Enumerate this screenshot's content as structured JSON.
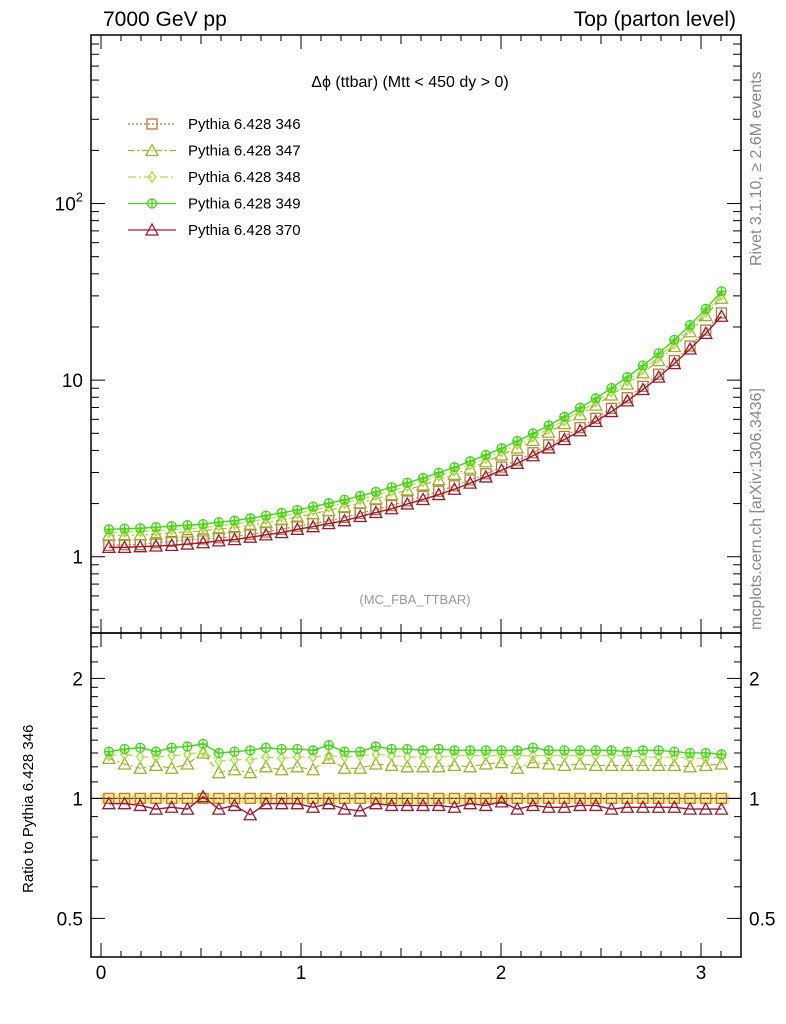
{
  "header": {
    "left": "7000 GeV pp",
    "right": "Top (parton level)"
  },
  "side_labels": {
    "rivet": "Rivet 3.1.10, ≥ 2.6M events",
    "mcplots": "mcplots.cern.ch [arXiv:1306.3436]"
  },
  "chart_data": [
    {
      "type": "line",
      "panel": "main",
      "title": "Δϕ (ttbar) (Mtt < 450 dy > 0)",
      "watermark": "(MC_FBA_TTBAR)",
      "yscale": "log",
      "xlim": [
        -0.05,
        3.2
      ],
      "ylim": [
        0.37,
        900
      ],
      "yticks": [
        {
          "value": 1,
          "label": "1"
        },
        {
          "value": 10,
          "label": "10"
        },
        {
          "value": 100,
          "label": "10^2"
        }
      ],
      "xticks": [
        0,
        1,
        2,
        3
      ],
      "legend_position": "top-left",
      "x": [
        0.0393,
        0.1178,
        0.1963,
        0.2749,
        0.3534,
        0.432,
        0.5105,
        0.589,
        0.6676,
        0.7461,
        0.8247,
        0.9032,
        0.9817,
        1.0603,
        1.1388,
        1.2174,
        1.2959,
        1.3744,
        1.453,
        1.5315,
        1.6101,
        1.6886,
        1.7671,
        1.8457,
        1.9242,
        2.0028,
        2.0813,
        2.1598,
        2.2384,
        2.3169,
        2.3955,
        2.474,
        2.5525,
        2.6311,
        2.7096,
        2.7882,
        2.8667,
        2.9452,
        3.0238,
        3.1023
      ],
      "series": [
        {
          "name": "Pythia 6.428 346",
          "color": "#b97a38",
          "marker": "square",
          "dash": "2,2",
          "values": [
            1.16,
            1.17,
            1.17,
            1.2,
            1.22,
            1.25,
            1.26,
            1.28,
            1.3,
            1.34,
            1.38,
            1.43,
            1.49,
            1.54,
            1.6,
            1.67,
            1.76,
            1.85,
            1.95,
            2.07,
            2.2,
            2.35,
            2.52,
            2.72,
            2.95,
            3.22,
            3.52,
            3.88,
            4.3,
            4.8,
            5.38,
            6.08,
            6.92,
            7.95,
            9.22,
            10.8,
            12.9,
            15.6,
            19.2,
            24.0
          ]
        },
        {
          "name": "Pythia 6.428 347",
          "color": "#9ab524",
          "marker": "triangle",
          "dash": "6,3,2,3",
          "values": [
            1.33,
            1.32,
            1.33,
            1.34,
            1.37,
            1.38,
            1.4,
            1.44,
            1.46,
            1.51,
            1.56,
            1.62,
            1.68,
            1.75,
            1.83,
            1.92,
            2.02,
            2.13,
            2.25,
            2.39,
            2.55,
            2.73,
            2.93,
            3.17,
            3.45,
            3.77,
            4.13,
            4.56,
            5.07,
            5.67,
            6.37,
            7.22,
            8.24,
            9.49,
            11.0,
            12.9,
            15.5,
            18.8,
            23.2,
            29.1
          ]
        },
        {
          "name": "Pythia 6.428 348",
          "color": "#a7e43a",
          "marker": "diamond",
          "dash": "8,3,2,3",
          "values": [
            1.37,
            1.38,
            1.39,
            1.4,
            1.43,
            1.44,
            1.46,
            1.5,
            1.53,
            1.58,
            1.63,
            1.69,
            1.76,
            1.83,
            1.92,
            2.01,
            2.11,
            2.23,
            2.36,
            2.51,
            2.67,
            2.86,
            3.07,
            3.32,
            3.61,
            3.94,
            4.32,
            4.77,
            5.3,
            5.92,
            6.66,
            7.54,
            8.61,
            9.91,
            11.5,
            13.5,
            16.2,
            19.6,
            24.2,
            30.4
          ]
        },
        {
          "name": "Pythia 6.428 349",
          "color": "#44d61c",
          "marker": "plus",
          "dash": "",
          "values": [
            1.43,
            1.44,
            1.45,
            1.47,
            1.49,
            1.51,
            1.53,
            1.57,
            1.6,
            1.65,
            1.71,
            1.77,
            1.84,
            1.92,
            2.01,
            2.1,
            2.21,
            2.33,
            2.47,
            2.62,
            2.79,
            2.99,
            3.21,
            3.47,
            3.77,
            4.12,
            4.52,
            4.99,
            5.54,
            6.2,
            6.97,
            7.89,
            9.01,
            10.4,
            12.1,
            14.2,
            16.9,
            20.5,
            25.3,
            31.8
          ]
        },
        {
          "name": "Pythia 6.428 370",
          "color": "#a01830",
          "marker": "triangle",
          "dash": "",
          "values": [
            1.13,
            1.13,
            1.14,
            1.15,
            1.16,
            1.18,
            1.2,
            1.23,
            1.25,
            1.29,
            1.33,
            1.37,
            1.43,
            1.48,
            1.54,
            1.6,
            1.69,
            1.78,
            1.87,
            1.99,
            2.11,
            2.25,
            2.41,
            2.61,
            2.83,
            3.09,
            3.38,
            3.73,
            4.13,
            4.61,
            5.17,
            5.84,
            6.64,
            7.63,
            8.85,
            10.4,
            12.4,
            15.0,
            18.4,
            23.0
          ]
        }
      ]
    },
    {
      "type": "line",
      "panel": "ratio",
      "ylabel": "Ratio to Pythia 6.428 346",
      "yscale": "log",
      "xlim": [
        -0.05,
        3.2
      ],
      "ylim": [
        0.4,
        2.6
      ],
      "yticks": [
        {
          "value": 0.5,
          "label": "0.5"
        },
        {
          "value": 1,
          "label": "1"
        },
        {
          "value": 2,
          "label": "2"
        }
      ],
      "xticks": [
        0,
        1,
        2,
        3
      ],
      "band": {
        "low": 0.97,
        "high": 1.03,
        "color": "#f7e98a"
      },
      "x": [
        0.0393,
        0.1178,
        0.1963,
        0.2749,
        0.3534,
        0.432,
        0.5105,
        0.589,
        0.6676,
        0.7461,
        0.8247,
        0.9032,
        0.9817,
        1.0603,
        1.1388,
        1.2174,
        1.2959,
        1.3744,
        1.453,
        1.5315,
        1.6101,
        1.6886,
        1.7671,
        1.8457,
        1.9242,
        2.0028,
        2.0813,
        2.1598,
        2.2384,
        2.3169,
        2.3955,
        2.474,
        2.5525,
        2.6311,
        2.7096,
        2.7882,
        2.8667,
        2.9452,
        3.0238,
        3.1023
      ],
      "series": [
        {
          "name": "Pythia 6.428 346",
          "color": "#b97a38",
          "marker": "square",
          "dash": "2,2",
          "values": [
            1,
            1,
            1,
            1,
            1,
            1,
            1,
            1,
            1,
            1,
            1,
            1,
            1,
            1,
            1,
            1,
            1,
            1,
            1,
            1,
            1,
            1,
            1,
            1,
            1,
            1,
            1,
            1,
            1,
            1,
            1,
            1,
            1,
            1,
            1,
            1,
            1,
            1,
            1,
            1
          ]
        },
        {
          "name": "Pythia 6.428 347",
          "color": "#9ab524",
          "marker": "triangle",
          "dash": "6,3,2,3",
          "values": [
            1.26,
            1.22,
            1.19,
            1.21,
            1.19,
            1.22,
            1.3,
            1.16,
            1.18,
            1.16,
            1.2,
            1.18,
            1.2,
            1.18,
            1.26,
            1.19,
            1.19,
            1.22,
            1.21,
            1.2,
            1.2,
            1.2,
            1.21,
            1.2,
            1.22,
            1.23,
            1.19,
            1.23,
            1.22,
            1.21,
            1.22,
            1.21,
            1.21,
            1.21,
            1.21,
            1.21,
            1.21,
            1.2,
            1.21,
            1.22
          ]
        },
        {
          "name": "Pythia 6.428 348",
          "color": "#a7e43a",
          "marker": "diamond",
          "dash": "8,3,2,3",
          "values": [
            1.28,
            1.29,
            1.27,
            1.27,
            1.28,
            1.29,
            1.31,
            1.24,
            1.25,
            1.25,
            1.27,
            1.26,
            1.27,
            1.27,
            1.28,
            1.27,
            1.28,
            1.29,
            1.28,
            1.27,
            1.27,
            1.27,
            1.28,
            1.28,
            1.28,
            1.28,
            1.28,
            1.28,
            1.28,
            1.28,
            1.28,
            1.28,
            1.28,
            1.28,
            1.27,
            1.27,
            1.27,
            1.26,
            1.26,
            1.27
          ]
        },
        {
          "name": "Pythia 6.428 349",
          "color": "#44d61c",
          "marker": "plus",
          "dash": "",
          "values": [
            1.31,
            1.33,
            1.34,
            1.31,
            1.34,
            1.35,
            1.37,
            1.3,
            1.31,
            1.32,
            1.34,
            1.33,
            1.33,
            1.32,
            1.36,
            1.31,
            1.31,
            1.35,
            1.33,
            1.33,
            1.32,
            1.33,
            1.32,
            1.32,
            1.32,
            1.32,
            1.32,
            1.34,
            1.32,
            1.32,
            1.32,
            1.32,
            1.32,
            1.31,
            1.32,
            1.32,
            1.31,
            1.3,
            1.3,
            1.29
          ]
        },
        {
          "name": "Pythia 6.428 370",
          "color": "#a01830",
          "marker": "triangle",
          "dash": "",
          "values": [
            0.97,
            0.97,
            0.96,
            0.94,
            0.95,
            0.94,
            1.01,
            0.94,
            0.96,
            0.91,
            0.97,
            0.97,
            0.97,
            0.95,
            0.97,
            0.94,
            0.93,
            0.97,
            0.96,
            0.96,
            0.96,
            0.96,
            0.95,
            0.97,
            0.96,
            0.98,
            0.94,
            0.96,
            0.95,
            0.95,
            0.96,
            0.96,
            0.94,
            0.95,
            0.95,
            0.95,
            0.95,
            0.94,
            0.94,
            0.94
          ]
        }
      ]
    }
  ]
}
